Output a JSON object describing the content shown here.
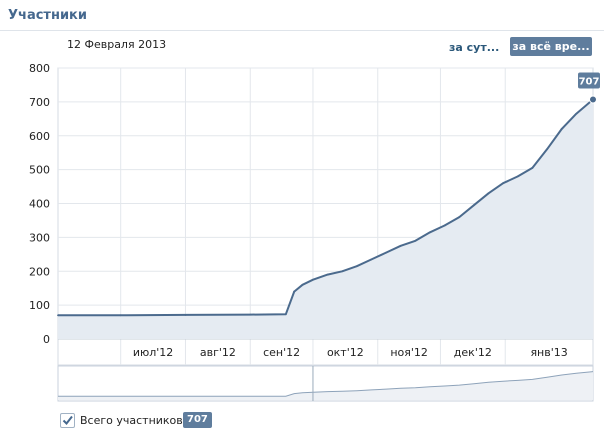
{
  "header": {
    "title": "Участники"
  },
  "toolbar": {
    "date": "12 Февраля 2013",
    "range_day": "за сут...",
    "range_all": "за всё вре..."
  },
  "legend": {
    "series_label": "Всего участников",
    "checked": true,
    "value": "707"
  },
  "colors": {
    "line": "#4b6a8d",
    "fill": "#e5ebf2",
    "grid": "#e3e7ec",
    "badge": "#5f7d9d",
    "accent": "#45688e"
  },
  "chart_data": {
    "type": "area",
    "title": "",
    "xlabel": "",
    "ylabel": "",
    "ylim": [
      0,
      800
    ],
    "yticks": [
      "800",
      "700",
      "600",
      "500",
      "400",
      "300",
      "200",
      "100",
      "0"
    ],
    "xlim": [
      "2012-06-01",
      "2013-02-12"
    ],
    "x_tick_labels": [
      "июл'12",
      "авг'12",
      "сен'12",
      "окт'12",
      "ноя'12",
      "дек'12",
      "янв'13"
    ],
    "x_tick_dates": [
      "2012-07-01",
      "2012-08-01",
      "2012-09-01",
      "2012-10-01",
      "2012-11-01",
      "2012-12-01",
      "2013-01-01"
    ],
    "grid": true,
    "end_label": "707",
    "series": [
      {
        "name": "Всего участников",
        "x": [
          "2012-06-01",
          "2012-07-01",
          "2012-08-01",
          "2012-09-01",
          "2012-09-18",
          "2012-09-22",
          "2012-09-26",
          "2012-10-01",
          "2012-10-08",
          "2012-10-15",
          "2012-10-22",
          "2012-10-29",
          "2012-11-05",
          "2012-11-12",
          "2012-11-19",
          "2012-11-26",
          "2012-12-03",
          "2012-12-10",
          "2012-12-17",
          "2012-12-24",
          "2012-12-31",
          "2013-01-07",
          "2013-01-14",
          "2013-01-21",
          "2013-01-28",
          "2013-02-04",
          "2013-02-12"
        ],
        "y": [
          70,
          70,
          71,
          72,
          73,
          140,
          160,
          175,
          190,
          200,
          215,
          235,
          255,
          275,
          290,
          315,
          335,
          360,
          395,
          430,
          460,
          480,
          505,
          560,
          620,
          665,
          707
        ]
      }
    ]
  }
}
